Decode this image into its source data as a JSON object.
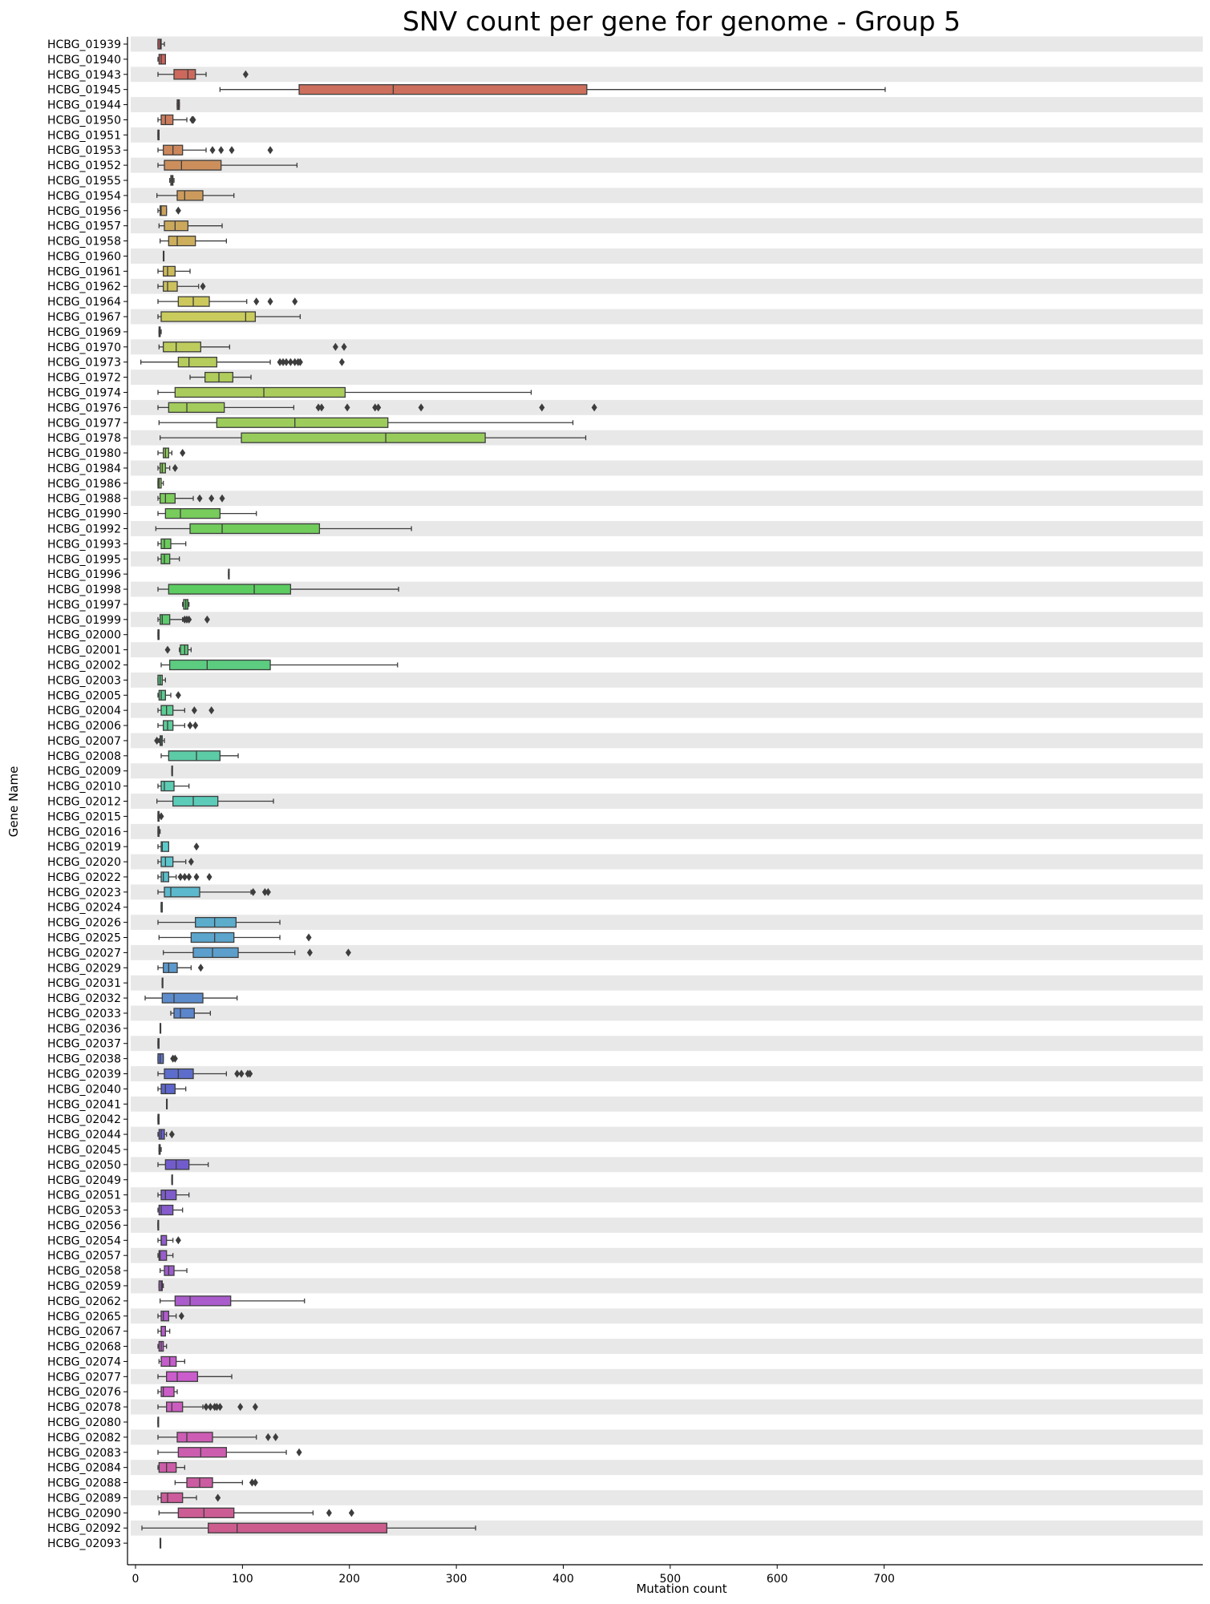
{
  "chart_data": {
    "type": "boxplot",
    "orientation": "horizontal",
    "title": "SNV count per gene for genome - Group 5",
    "xlabel": "Mutation count",
    "ylabel": "Gene Name",
    "xlim": [
      -3,
      710
    ],
    "xticks": [
      0,
      100,
      200,
      300,
      400,
      500,
      600,
      700
    ],
    "grid": "alternating row bands",
    "legend": "none",
    "palette": "husl gradient (red → orange → olive → green → teal → blue → purple → pink)",
    "genes": [
      {
        "name": "HCBG_01939",
        "whislo": 21,
        "q1": 21,
        "med": 23,
        "q3": 24,
        "whishi": 27,
        "outliers": []
      },
      {
        "name": "HCBG_01940",
        "whislo": 21,
        "q1": 22,
        "med": 24,
        "q3": 28,
        "whishi": 28,
        "outliers": []
      },
      {
        "name": "HCBG_01943",
        "whislo": 21,
        "q1": 36,
        "med": 49,
        "q3": 56,
        "whishi": 66,
        "outliers": [
          103
        ]
      },
      {
        "name": "HCBG_01945",
        "whislo": 79,
        "q1": 153,
        "med": 241,
        "q3": 422,
        "whishi": 701,
        "outliers": []
      },
      {
        "name": "HCBG_01944",
        "whislo": 39,
        "q1": 39,
        "med": 40,
        "q3": 41,
        "whishi": 41,
        "outliers": []
      },
      {
        "name": "HCBG_01950",
        "whislo": 21,
        "q1": 24,
        "med": 28,
        "q3": 35,
        "whishi": 48,
        "outliers": [
          53,
          54
        ]
      },
      {
        "name": "HCBG_01951",
        "whislo": 21,
        "q1": 21,
        "med": 21,
        "q3": 22,
        "whishi": 22,
        "outliers": []
      },
      {
        "name": "HCBG_01953",
        "whislo": 21,
        "q1": 26,
        "med": 35,
        "q3": 44,
        "whishi": 66,
        "outliers": [
          72,
          80,
          90,
          126
        ]
      },
      {
        "name": "HCBG_01952",
        "whislo": 21,
        "q1": 27,
        "med": 43,
        "q3": 80,
        "whishi": 151,
        "outliers": []
      },
      {
        "name": "HCBG_01955",
        "whislo": 32,
        "q1": 33,
        "med": 34,
        "q3": 35,
        "whishi": 36,
        "outliers": []
      },
      {
        "name": "HCBG_01954",
        "whislo": 20,
        "q1": 39,
        "med": 46,
        "q3": 63,
        "whishi": 92,
        "outliers": []
      },
      {
        "name": "HCBG_01956",
        "whislo": 21,
        "q1": 23,
        "med": 24,
        "q3": 29,
        "whishi": 29,
        "outliers": [
          40
        ]
      },
      {
        "name": "HCBG_01957",
        "whislo": 22,
        "q1": 27,
        "med": 37,
        "q3": 49,
        "whishi": 81,
        "outliers": []
      },
      {
        "name": "HCBG_01958",
        "whislo": 23,
        "q1": 31,
        "med": 39,
        "q3": 56,
        "whishi": 85,
        "outliers": []
      },
      {
        "name": "HCBG_01960",
        "whislo": 26,
        "q1": 26,
        "med": 26,
        "q3": 26,
        "whishi": 26,
        "outliers": []
      },
      {
        "name": "HCBG_01961",
        "whislo": 21,
        "q1": 26,
        "med": 30,
        "q3": 37,
        "whishi": 51,
        "outliers": []
      },
      {
        "name": "HCBG_01962",
        "whislo": 21,
        "q1": 26,
        "med": 30,
        "q3": 39,
        "whishi": 59,
        "outliers": [
          63
        ]
      },
      {
        "name": "HCBG_01964",
        "whislo": 21,
        "q1": 40,
        "med": 54,
        "q3": 69,
        "whishi": 104,
        "outliers": [
          113,
          126,
          149
        ]
      },
      {
        "name": "HCBG_01967",
        "whislo": 21,
        "q1": 24,
        "med": 103,
        "q3": 112,
        "whishi": 154,
        "outliers": []
      },
      {
        "name": "HCBG_01969",
        "whislo": 22,
        "q1": 22,
        "med": 23,
        "q3": 23,
        "whishi": 24,
        "outliers": []
      },
      {
        "name": "HCBG_01970",
        "whislo": 22,
        "q1": 26,
        "med": 38,
        "q3": 61,
        "whishi": 88,
        "outliers": [
          187,
          195
        ]
      },
      {
        "name": "HCBG_01973",
        "whislo": 5,
        "q1": 40,
        "med": 50,
        "q3": 76,
        "whishi": 126,
        "outliers": [
          135,
          138,
          141,
          145,
          149,
          152,
          154,
          193
        ]
      },
      {
        "name": "HCBG_01972",
        "whislo": 51,
        "q1": 65,
        "med": 78,
        "q3": 91,
        "whishi": 108,
        "outliers": []
      },
      {
        "name": "HCBG_01974",
        "whislo": 21,
        "q1": 37,
        "med": 120,
        "q3": 196,
        "whishi": 370,
        "outliers": []
      },
      {
        "name": "HCBG_01976",
        "whislo": 21,
        "q1": 31,
        "med": 48,
        "q3": 83,
        "whishi": 148,
        "outliers": [
          171,
          174,
          198,
          224,
          227,
          267,
          380,
          429
        ]
      },
      {
        "name": "HCBG_01977",
        "whislo": 22,
        "q1": 76,
        "med": 149,
        "q3": 236,
        "whishi": 409,
        "outliers": []
      },
      {
        "name": "HCBG_01978",
        "whislo": 23,
        "q1": 99,
        "med": 234,
        "q3": 327,
        "whishi": 421,
        "outliers": []
      },
      {
        "name": "HCBG_01980",
        "whislo": 21,
        "q1": 26,
        "med": 28,
        "q3": 31,
        "whishi": 34,
        "outliers": [
          44
        ]
      },
      {
        "name": "HCBG_01984",
        "whislo": 21,
        "q1": 23,
        "med": 25,
        "q3": 28,
        "whishi": 32,
        "outliers": [
          37
        ]
      },
      {
        "name": "HCBG_01986",
        "whislo": 21,
        "q1": 21,
        "med": 22,
        "q3": 24,
        "whishi": 26,
        "outliers": []
      },
      {
        "name": "HCBG_01988",
        "whislo": 21,
        "q1": 23,
        "med": 28,
        "q3": 37,
        "whishi": 54,
        "outliers": [
          60,
          71,
          81
        ]
      },
      {
        "name": "HCBG_01990",
        "whislo": 21,
        "q1": 28,
        "med": 42,
        "q3": 79,
        "whishi": 113,
        "outliers": []
      },
      {
        "name": "HCBG_01992",
        "whislo": 19,
        "q1": 51,
        "med": 81,
        "q3": 172,
        "whishi": 258,
        "outliers": []
      },
      {
        "name": "HCBG_01993",
        "whislo": 21,
        "q1": 24,
        "med": 27,
        "q3": 33,
        "whishi": 47,
        "outliers": []
      },
      {
        "name": "HCBG_01995",
        "whislo": 21,
        "q1": 24,
        "med": 27,
        "q3": 32,
        "whishi": 41,
        "outliers": []
      },
      {
        "name": "HCBG_01996",
        "whislo": 87,
        "q1": 87,
        "med": 87,
        "q3": 87,
        "whishi": 87,
        "outliers": []
      },
      {
        "name": "HCBG_01998",
        "whislo": 21,
        "q1": 31,
        "med": 111,
        "q3": 145,
        "whishi": 246,
        "outliers": []
      },
      {
        "name": "HCBG_01997",
        "whislo": 44,
        "q1": 45,
        "med": 47,
        "q3": 49,
        "whishi": 50,
        "outliers": []
      },
      {
        "name": "HCBG_01999",
        "whislo": 21,
        "q1": 23,
        "med": 25,
        "q3": 32,
        "whishi": 44,
        "outliers": [
          46,
          48,
          50,
          67
        ]
      },
      {
        "name": "HCBG_02000",
        "whislo": 21,
        "q1": 21,
        "med": 22,
        "q3": 22,
        "whishi": 22,
        "outliers": []
      },
      {
        "name": "HCBG_02001",
        "whislo": 41,
        "q1": 42,
        "med": 46,
        "q3": 49,
        "whishi": 52,
        "outliers": [
          30
        ]
      },
      {
        "name": "HCBG_02002",
        "whislo": 24,
        "q1": 32,
        "med": 67,
        "q3": 126,
        "whishi": 245,
        "outliers": []
      },
      {
        "name": "HCBG_02003",
        "whislo": 21,
        "q1": 21,
        "med": 23,
        "q3": 25,
        "whishi": 28,
        "outliers": []
      },
      {
        "name": "HCBG_02005",
        "whislo": 21,
        "q1": 22,
        "med": 24,
        "q3": 28,
        "whishi": 33,
        "outliers": [
          40
        ]
      },
      {
        "name": "HCBG_02004",
        "whislo": 21,
        "q1": 24,
        "med": 29,
        "q3": 35,
        "whishi": 46,
        "outliers": [
          55,
          71
        ]
      },
      {
        "name": "HCBG_02006",
        "whislo": 21,
        "q1": 26,
        "med": 30,
        "q3": 35,
        "whishi": 46,
        "outliers": [
          51,
          56
        ]
      },
      {
        "name": "HCBG_02007",
        "whislo": 22,
        "q1": 23,
        "med": 24,
        "q3": 25,
        "whishi": 27,
        "outliers": [
          20
        ]
      },
      {
        "name": "HCBG_02008",
        "whislo": 24,
        "q1": 31,
        "med": 57,
        "q3": 79,
        "whishi": 96,
        "outliers": []
      },
      {
        "name": "HCBG_02009",
        "whislo": 34,
        "q1": 34,
        "med": 34,
        "q3": 34,
        "whishi": 34,
        "outliers": []
      },
      {
        "name": "HCBG_02010",
        "whislo": 21,
        "q1": 24,
        "med": 27,
        "q3": 36,
        "whishi": 50,
        "outliers": []
      },
      {
        "name": "HCBG_02012",
        "whislo": 20,
        "q1": 35,
        "med": 54,
        "q3": 77,
        "whishi": 129,
        "outliers": []
      },
      {
        "name": "HCBG_02015",
        "whislo": 21,
        "q1": 21,
        "med": 22,
        "q3": 22,
        "whishi": 22,
        "outliers": [
          24
        ]
      },
      {
        "name": "HCBG_02016",
        "whislo": 21,
        "q1": 21,
        "med": 22,
        "q3": 22,
        "whishi": 23,
        "outliers": []
      },
      {
        "name": "HCBG_02019",
        "whislo": 21,
        "q1": 24,
        "med": 25,
        "q3": 31,
        "whishi": 31,
        "outliers": [
          57
        ]
      },
      {
        "name": "HCBG_02020",
        "whislo": 21,
        "q1": 24,
        "med": 28,
        "q3": 35,
        "whishi": 47,
        "outliers": [
          52
        ]
      },
      {
        "name": "HCBG_02022",
        "whislo": 21,
        "q1": 24,
        "med": 26,
        "q3": 31,
        "whishi": 38,
        "outliers": [
          42,
          46,
          50,
          57,
          69
        ]
      },
      {
        "name": "HCBG_02023",
        "whislo": 21,
        "q1": 27,
        "med": 33,
        "q3": 60,
        "whishi": 108,
        "outliers": [
          110,
          121,
          124
        ]
      },
      {
        "name": "HCBG_02024",
        "whislo": 24,
        "q1": 24,
        "med": 24,
        "q3": 25,
        "whishi": 25,
        "outliers": []
      },
      {
        "name": "HCBG_02026",
        "whislo": 21,
        "q1": 56,
        "med": 74,
        "q3": 94,
        "whishi": 135,
        "outliers": []
      },
      {
        "name": "HCBG_02025",
        "whislo": 22,
        "q1": 52,
        "med": 74,
        "q3": 92,
        "whishi": 135,
        "outliers": [
          162
        ]
      },
      {
        "name": "HCBG_02027",
        "whislo": 26,
        "q1": 54,
        "med": 72,
        "q3": 96,
        "whishi": 149,
        "outliers": [
          163,
          199
        ]
      },
      {
        "name": "HCBG_02029",
        "whislo": 21,
        "q1": 26,
        "med": 31,
        "q3": 39,
        "whishi": 52,
        "outliers": [
          61
        ]
      },
      {
        "name": "HCBG_02031",
        "whislo": 25,
        "q1": 25,
        "med": 25,
        "q3": 25,
        "whishi": 25,
        "outliers": []
      },
      {
        "name": "HCBG_02032",
        "whislo": 9,
        "q1": 25,
        "med": 36,
        "q3": 63,
        "whishi": 95,
        "outliers": []
      },
      {
        "name": "HCBG_02033",
        "whislo": 33,
        "q1": 36,
        "med": 42,
        "q3": 55,
        "whishi": 70,
        "outliers": []
      },
      {
        "name": "HCBG_02036",
        "whislo": 23,
        "q1": 23,
        "med": 23,
        "q3": 23,
        "whishi": 23,
        "outliers": []
      },
      {
        "name": "HCBG_02037",
        "whislo": 21,
        "q1": 21,
        "med": 22,
        "q3": 22,
        "whishi": 22,
        "outliers": []
      },
      {
        "name": "HCBG_02038",
        "whislo": 21,
        "q1": 21,
        "med": 23,
        "q3": 26,
        "whishi": 26,
        "outliers": [
          35,
          37
        ]
      },
      {
        "name": "HCBG_02039",
        "whislo": 21,
        "q1": 27,
        "med": 40,
        "q3": 54,
        "whishi": 85,
        "outliers": [
          95,
          99,
          105,
          107
        ]
      },
      {
        "name": "HCBG_02040",
        "whislo": 21,
        "q1": 24,
        "med": 28,
        "q3": 37,
        "whishi": 47,
        "outliers": []
      },
      {
        "name": "HCBG_02041",
        "whislo": 29,
        "q1": 29,
        "med": 29,
        "q3": 29,
        "whishi": 29,
        "outliers": []
      },
      {
        "name": "HCBG_02042",
        "whislo": 21,
        "q1": 21,
        "med": 22,
        "q3": 22,
        "whishi": 22,
        "outliers": []
      },
      {
        "name": "HCBG_02044",
        "whislo": 21,
        "q1": 22,
        "med": 24,
        "q3": 27,
        "whishi": 29,
        "outliers": [
          34
        ]
      },
      {
        "name": "HCBG_02045",
        "whislo": 22,
        "q1": 22,
        "med": 23,
        "q3": 23,
        "whishi": 24,
        "outliers": []
      },
      {
        "name": "HCBG_02050",
        "whislo": 21,
        "q1": 28,
        "med": 38,
        "q3": 50,
        "whishi": 68,
        "outliers": []
      },
      {
        "name": "HCBG_02049",
        "whislo": 34,
        "q1": 34,
        "med": 34,
        "q3": 34,
        "whishi": 34,
        "outliers": []
      },
      {
        "name": "HCBG_02051",
        "whislo": 21,
        "q1": 24,
        "med": 28,
        "q3": 38,
        "whishi": 50,
        "outliers": []
      },
      {
        "name": "HCBG_02053",
        "whislo": 21,
        "q1": 22,
        "med": 24,
        "q3": 35,
        "whishi": 44,
        "outliers": []
      },
      {
        "name": "HCBG_02056",
        "whislo": 21,
        "q1": 21,
        "med": 21,
        "q3": 21,
        "whishi": 21,
        "outliers": []
      },
      {
        "name": "HCBG_02054",
        "whislo": 21,
        "q1": 24,
        "med": 24,
        "q3": 29,
        "whishi": 35,
        "outliers": [
          40
        ]
      },
      {
        "name": "HCBG_02057",
        "whislo": 21,
        "q1": 22,
        "med": 23,
        "q3": 29,
        "whishi": 35,
        "outliers": []
      },
      {
        "name": "HCBG_02058",
        "whislo": 23,
        "q1": 27,
        "med": 31,
        "q3": 36,
        "whishi": 48,
        "outliers": []
      },
      {
        "name": "HCBG_02059",
        "whislo": 22,
        "q1": 22,
        "med": 24,
        "q3": 25,
        "whishi": 26,
        "outliers": []
      },
      {
        "name": "HCBG_02062",
        "whislo": 23,
        "q1": 37,
        "med": 51,
        "q3": 89,
        "whishi": 158,
        "outliers": []
      },
      {
        "name": "HCBG_02065",
        "whislo": 21,
        "q1": 24,
        "med": 26,
        "q3": 31,
        "whishi": 38,
        "outliers": [
          43
        ]
      },
      {
        "name": "HCBG_02067",
        "whislo": 21,
        "q1": 24,
        "med": 24,
        "q3": 28,
        "whishi": 32,
        "outliers": []
      },
      {
        "name": "HCBG_02068",
        "whislo": 21,
        "q1": 22,
        "med": 24,
        "q3": 26,
        "whishi": 29,
        "outliers": []
      },
      {
        "name": "HCBG_02074",
        "whislo": 22,
        "q1": 24,
        "med": 32,
        "q3": 38,
        "whishi": 46,
        "outliers": []
      },
      {
        "name": "HCBG_02077",
        "whislo": 21,
        "q1": 29,
        "med": 39,
        "q3": 58,
        "whishi": 90,
        "outliers": []
      },
      {
        "name": "HCBG_02076",
        "whislo": 21,
        "q1": 24,
        "med": 26,
        "q3": 36,
        "whishi": 39,
        "outliers": []
      },
      {
        "name": "HCBG_02078",
        "whislo": 21,
        "q1": 29,
        "med": 34,
        "q3": 44,
        "whishi": 63,
        "outliers": [
          66,
          70,
          74,
          76,
          79,
          98,
          112
        ]
      },
      {
        "name": "HCBG_02080",
        "whislo": 21,
        "q1": 21,
        "med": 21,
        "q3": 21,
        "whishi": 21,
        "outliers": []
      },
      {
        "name": "HCBG_02082",
        "whislo": 21,
        "q1": 39,
        "med": 48,
        "q3": 72,
        "whishi": 113,
        "outliers": [
          124,
          131
        ]
      },
      {
        "name": "HCBG_02083",
        "whislo": 21,
        "q1": 40,
        "med": 61,
        "q3": 85,
        "whishi": 141,
        "outliers": [
          153
        ]
      },
      {
        "name": "HCBG_02084",
        "whislo": 21,
        "q1": 22,
        "med": 29,
        "q3": 38,
        "whishi": 46,
        "outliers": []
      },
      {
        "name": "HCBG_02088",
        "whislo": 37,
        "q1": 48,
        "med": 60,
        "q3": 72,
        "whishi": 100,
        "outliers": [
          109,
          112
        ]
      },
      {
        "name": "HCBG_02089",
        "whislo": 21,
        "q1": 24,
        "med": 30,
        "q3": 44,
        "whishi": 57,
        "outliers": [
          77
        ]
      },
      {
        "name": "HCBG_02090",
        "whislo": 22,
        "q1": 40,
        "med": 64,
        "q3": 92,
        "whishi": 166,
        "outliers": [
          181,
          202
        ]
      },
      {
        "name": "HCBG_02092",
        "whislo": 6,
        "q1": 68,
        "med": 95,
        "q3": 235,
        "whishi": 318,
        "outliers": []
      },
      {
        "name": "HCBG_02093",
        "whislo": 23,
        "q1": 23,
        "med": 23,
        "q3": 23,
        "whishi": 23,
        "outliers": []
      }
    ]
  }
}
